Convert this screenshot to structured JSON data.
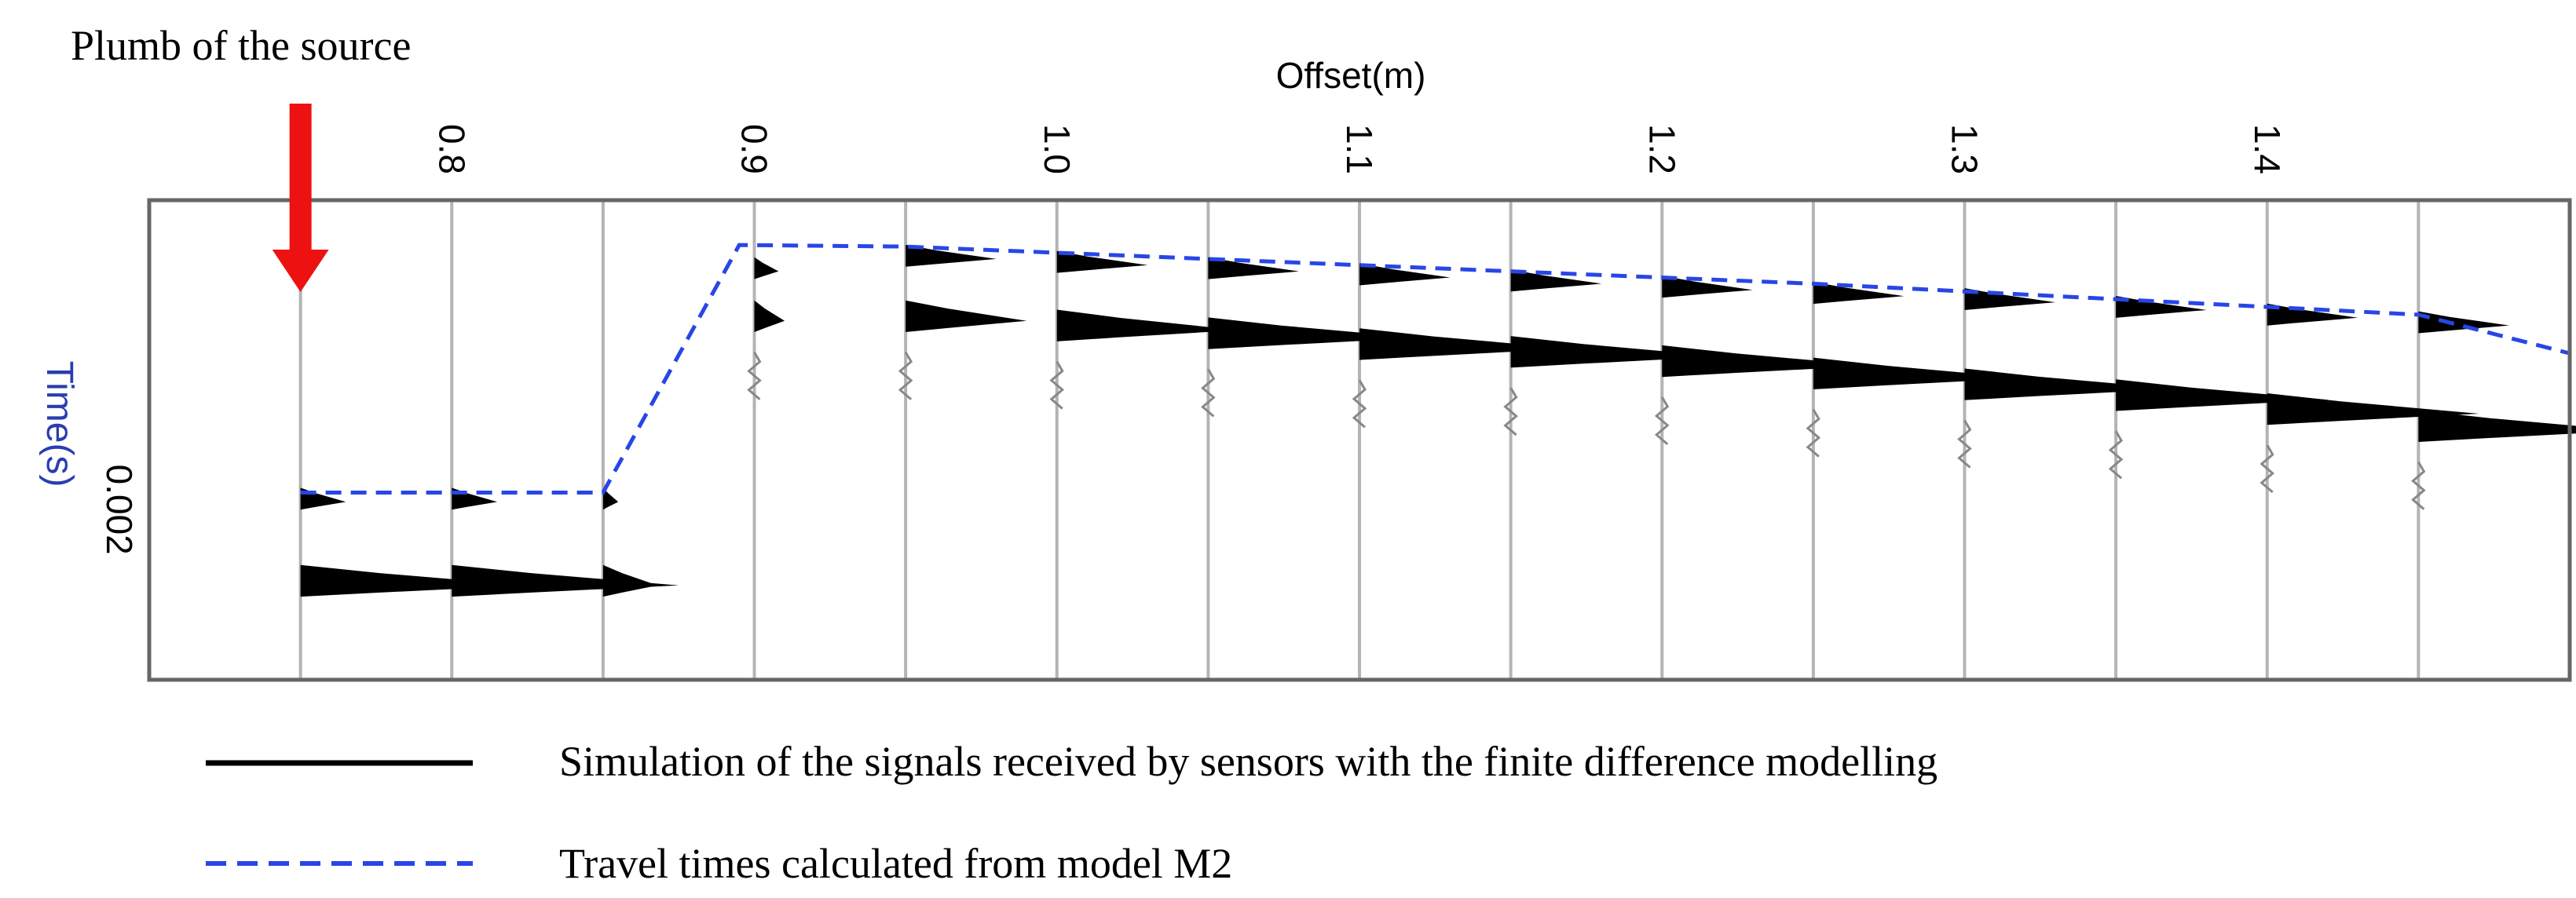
{
  "annotation": "Plumb of the source",
  "chart_data": {
    "type": "seismic-wiggle",
    "xlabel": "Offset(m)",
    "ylabel": "Time(s)",
    "x_ticks": [
      "0.8",
      "0.9",
      "1.0",
      "1.1",
      "1.2",
      "1.3",
      "1.4"
    ],
    "x_tick_values": [
      0.8,
      0.9,
      1.0,
      1.1,
      1.2,
      1.3,
      1.4
    ],
    "y_ticks": [
      "0.002"
    ],
    "y_tick_values": [
      0.002
    ],
    "xlim": [
      0.7,
      1.5
    ],
    "ylim": [
      0.0,
      0.0031
    ],
    "source_offset": 0.75,
    "traces": [
      {
        "offset": 0.75,
        "first": 0.00195,
        "second": 0.00249,
        "amp1": 0.015,
        "amp2": 0.075
      },
      {
        "offset": 0.8,
        "first": 0.00195,
        "second": 0.00249,
        "amp1": 0.015,
        "amp2": 0.075
      },
      {
        "offset": 0.85,
        "first": 0.00195,
        "second": 0.00249,
        "amp1": 0.005,
        "amp2": 0.018
      },
      {
        "offset": 0.9,
        "first": 0.00046,
        "second": 0.00078,
        "amp1": 0.008,
        "amp2": 0.01
      },
      {
        "offset": 0.95,
        "first": 0.00038,
        "second": 0.00078,
        "amp1": 0.03,
        "amp2": 0.04
      },
      {
        "offset": 1.0,
        "first": 0.00042,
        "second": 0.00084,
        "amp1": 0.03,
        "amp2": 0.06
      },
      {
        "offset": 1.05,
        "first": 0.00046,
        "second": 0.00089,
        "amp1": 0.03,
        "amp2": 0.07
      },
      {
        "offset": 1.1,
        "first": 0.0005,
        "second": 0.00096,
        "amp1": 0.03,
        "amp2": 0.07
      },
      {
        "offset": 1.15,
        "first": 0.00054,
        "second": 0.00101,
        "amp1": 0.03,
        "amp2": 0.07
      },
      {
        "offset": 1.2,
        "first": 0.00058,
        "second": 0.00107,
        "amp1": 0.03,
        "amp2": 0.07
      },
      {
        "offset": 1.25,
        "first": 0.00062,
        "second": 0.00115,
        "amp1": 0.03,
        "amp2": 0.07
      },
      {
        "offset": 1.3,
        "first": 0.00066,
        "second": 0.00122,
        "amp1": 0.03,
        "amp2": 0.07
      },
      {
        "offset": 1.35,
        "first": 0.00071,
        "second": 0.00129,
        "amp1": 0.03,
        "amp2": 0.07
      },
      {
        "offset": 1.4,
        "first": 0.00076,
        "second": 0.00138,
        "amp1": 0.03,
        "amp2": 0.07
      },
      {
        "offset": 1.45,
        "first": 0.00081,
        "second": 0.00149,
        "amp1": 0.03,
        "amp2": 0.07
      }
    ],
    "travel_times": {
      "x": [
        0.75,
        0.85,
        0.895,
        0.95,
        1.0,
        1.05,
        1.1,
        1.15,
        1.2,
        1.25,
        1.3,
        1.35,
        1.4,
        1.45,
        1.5
      ],
      "y": [
        0.00189,
        0.00189,
        0.00029,
        0.0003,
        0.00034,
        0.00038,
        0.00042,
        0.00046,
        0.0005,
        0.00054,
        0.00059,
        0.00064,
        0.00069,
        0.00074,
        0.00099
      ]
    },
    "legend": [
      {
        "label": "Simulation of the signals received by sensors with the finite difference modelling",
        "style": "solid",
        "color": "#000000"
      },
      {
        "label": "Travel times calculated from model M2",
        "style": "dashed",
        "color": "#2846e6"
      }
    ],
    "colors": {
      "axis_label": "#2a3db0",
      "source_arrow": "#ee1111",
      "trace": "#000000",
      "baseline": "#b4b4b4",
      "frame": "#666666",
      "travel_time": "#2846e6"
    }
  }
}
